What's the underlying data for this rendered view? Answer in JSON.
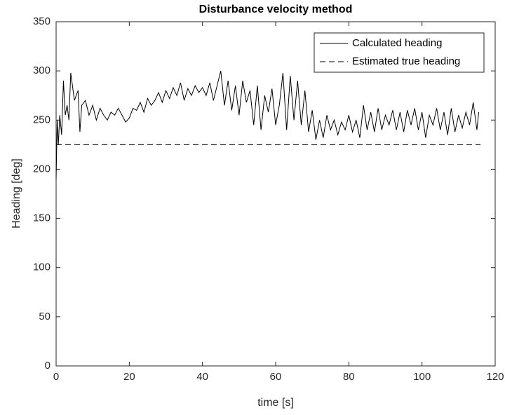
{
  "chart_data": {
    "type": "line",
    "title": "Disturbance velocity method",
    "xlabel": "time [s]",
    "ylabel": "Heading [deg]",
    "xlim": [
      0,
      120
    ],
    "xticks": [
      0,
      20,
      40,
      60,
      80,
      100,
      120
    ],
    "ylim": [
      0,
      350
    ],
    "yticks": [
      0,
      50,
      100,
      150,
      200,
      250,
      300,
      350
    ],
    "legend": "top-right",
    "series": [
      {
        "name": "Calculated heading",
        "color": "#000000",
        "dash": "solid",
        "x": [
          0,
          0.3,
          0.6,
          1,
          1.5,
          2,
          2.5,
          3,
          3.5,
          4,
          5,
          6,
          6.5,
          7,
          8,
          9,
          10,
          11,
          12,
          13,
          14,
          15,
          16,
          17,
          18,
          19,
          20,
          21,
          22,
          23,
          24,
          25,
          26,
          27,
          28,
          29,
          30,
          31,
          32,
          33,
          34,
          35,
          36,
          37,
          38,
          39,
          40,
          41,
          42,
          43,
          44,
          45,
          46,
          47,
          48,
          49,
          50,
          51,
          52,
          53,
          54,
          55,
          56,
          57,
          58,
          59,
          60,
          61,
          62,
          63,
          64,
          65,
          66,
          67,
          68,
          69,
          70,
          71,
          72,
          73,
          74,
          75,
          76,
          77,
          78,
          79,
          80,
          81,
          82,
          83,
          84,
          85,
          86,
          87,
          88,
          89,
          90,
          91,
          92,
          93,
          94,
          95,
          96,
          97,
          98,
          99,
          100,
          101,
          102,
          103,
          104,
          105,
          106,
          107,
          108,
          109,
          110,
          111,
          112,
          113,
          114,
          115,
          115.5
        ],
        "values": [
          190,
          250,
          225,
          255,
          235,
          290,
          255,
          265,
          250,
          298,
          270,
          280,
          238,
          265,
          270,
          255,
          265,
          250,
          262,
          255,
          250,
          258,
          255,
          262,
          255,
          248,
          252,
          262,
          260,
          268,
          258,
          272,
          265,
          270,
          278,
          268,
          280,
          272,
          283,
          275,
          288,
          270,
          282,
          275,
          285,
          278,
          283,
          275,
          288,
          270,
          285,
          300,
          265,
          290,
          260,
          285,
          255,
          290,
          268,
          280,
          245,
          285,
          240,
          275,
          258,
          282,
          245,
          265,
          298,
          240,
          295,
          250,
          290,
          245,
          280,
          238,
          260,
          230,
          250,
          232,
          255,
          240,
          250,
          235,
          248,
          240,
          255,
          238,
          250,
          232,
          265,
          240,
          258,
          238,
          262,
          240,
          255,
          245,
          260,
          240,
          258,
          238,
          260,
          245,
          262,
          240,
          258,
          232,
          255,
          245,
          262,
          240,
          258,
          235,
          262,
          238,
          255,
          242,
          258,
          245,
          268,
          240,
          258
        ]
      },
      {
        "name": "Estimated true heading",
        "color": "#000000",
        "dash": "dashed",
        "x": [
          0,
          116
        ],
        "values": [
          225,
          225
        ]
      }
    ]
  }
}
